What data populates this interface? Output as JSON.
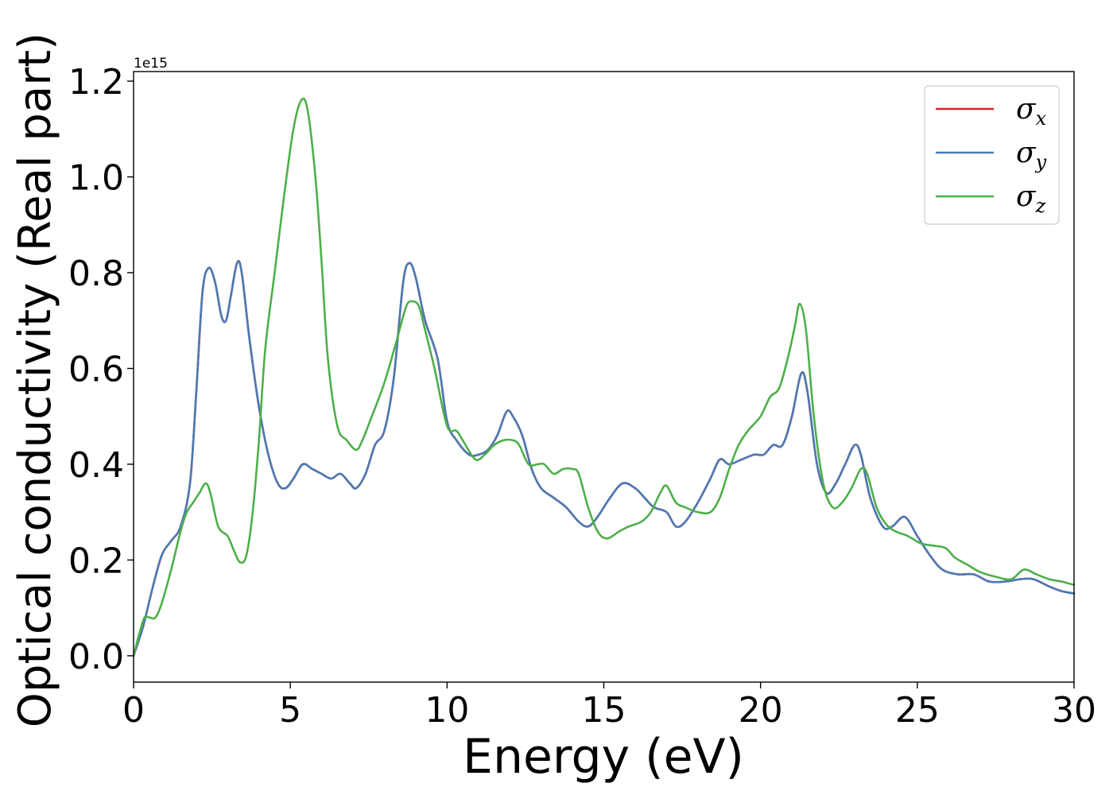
{
  "chart_data": {
    "type": "line",
    "xlabel": "Energy (eV)",
    "ylabel": "Optical conductivity (Real part)",
    "y_multiplier": "1e15",
    "xlim": [
      0,
      30
    ],
    "ylim": [
      -0.055,
      1.22
    ],
    "xticks": [
      0,
      5,
      10,
      15,
      20,
      25,
      30
    ],
    "xtick_labels": [
      "0",
      "5",
      "10",
      "15",
      "20",
      "25",
      "30"
    ],
    "yticks": [
      0.0,
      0.2,
      0.4,
      0.6,
      0.8,
      1.0,
      1.2
    ],
    "ytick_labels": [
      "0.0",
      "0.2",
      "0.4",
      "0.6",
      "0.8",
      "1.0",
      "1.2"
    ],
    "grid": false,
    "legend_position": "top-right",
    "series": [
      {
        "name": "σx",
        "symbol": "σ",
        "subscript": "x",
        "color": "#d62728",
        "points": [
          [
            0,
            0.0
          ],
          [
            0.3,
            0.06
          ],
          [
            0.6,
            0.14
          ],
          [
            0.9,
            0.21
          ],
          [
            1.2,
            0.24
          ],
          [
            1.5,
            0.27
          ],
          [
            1.8,
            0.36
          ],
          [
            2.0,
            0.55
          ],
          [
            2.2,
            0.76
          ],
          [
            2.4,
            0.81
          ],
          [
            2.6,
            0.78
          ],
          [
            2.8,
            0.71
          ],
          [
            2.95,
            0.7
          ],
          [
            3.1,
            0.75
          ],
          [
            3.3,
            0.82
          ],
          [
            3.45,
            0.8
          ],
          [
            3.7,
            0.66
          ],
          [
            4.0,
            0.52
          ],
          [
            4.3,
            0.42
          ],
          [
            4.6,
            0.36
          ],
          [
            4.85,
            0.35
          ],
          [
            5.1,
            0.37
          ],
          [
            5.4,
            0.4
          ],
          [
            5.7,
            0.39
          ],
          [
            6.0,
            0.38
          ],
          [
            6.3,
            0.37
          ],
          [
            6.6,
            0.38
          ],
          [
            6.9,
            0.36
          ],
          [
            7.1,
            0.35
          ],
          [
            7.4,
            0.38
          ],
          [
            7.7,
            0.44
          ],
          [
            8.0,
            0.47
          ],
          [
            8.3,
            0.58
          ],
          [
            8.6,
            0.78
          ],
          [
            8.8,
            0.82
          ],
          [
            9.0,
            0.79
          ],
          [
            9.3,
            0.7
          ],
          [
            9.7,
            0.62
          ],
          [
            10.0,
            0.49
          ],
          [
            10.3,
            0.45
          ],
          [
            10.7,
            0.42
          ],
          [
            11.0,
            0.42
          ],
          [
            11.3,
            0.43
          ],
          [
            11.6,
            0.46
          ],
          [
            11.9,
            0.51
          ],
          [
            12.1,
            0.5
          ],
          [
            12.4,
            0.46
          ],
          [
            12.7,
            0.39
          ],
          [
            13.0,
            0.35
          ],
          [
            13.4,
            0.33
          ],
          [
            13.8,
            0.31
          ],
          [
            14.2,
            0.28
          ],
          [
            14.5,
            0.27
          ],
          [
            14.8,
            0.29
          ],
          [
            15.2,
            0.33
          ],
          [
            15.6,
            0.36
          ],
          [
            16.0,
            0.35
          ],
          [
            16.3,
            0.33
          ],
          [
            16.6,
            0.31
          ],
          [
            17.0,
            0.3
          ],
          [
            17.3,
            0.27
          ],
          [
            17.6,
            0.28
          ],
          [
            18.0,
            0.32
          ],
          [
            18.4,
            0.37
          ],
          [
            18.7,
            0.41
          ],
          [
            19.0,
            0.4
          ],
          [
            19.4,
            0.41
          ],
          [
            19.8,
            0.42
          ],
          [
            20.1,
            0.42
          ],
          [
            20.4,
            0.44
          ],
          [
            20.7,
            0.44
          ],
          [
            21.0,
            0.5
          ],
          [
            21.3,
            0.59
          ],
          [
            21.5,
            0.55
          ],
          [
            21.8,
            0.4
          ],
          [
            22.1,
            0.34
          ],
          [
            22.4,
            0.36
          ],
          [
            22.7,
            0.4
          ],
          [
            23.0,
            0.44
          ],
          [
            23.2,
            0.42
          ],
          [
            23.5,
            0.33
          ],
          [
            23.9,
            0.27
          ],
          [
            24.2,
            0.27
          ],
          [
            24.6,
            0.29
          ],
          [
            25.0,
            0.25
          ],
          [
            25.4,
            0.21
          ],
          [
            25.8,
            0.18
          ],
          [
            26.3,
            0.17
          ],
          [
            26.8,
            0.17
          ],
          [
            27.3,
            0.155
          ],
          [
            27.8,
            0.155
          ],
          [
            28.3,
            0.16
          ],
          [
            28.7,
            0.16
          ],
          [
            29.2,
            0.145
          ],
          [
            29.6,
            0.135
          ],
          [
            30.0,
            0.13
          ]
        ]
      },
      {
        "name": "σy",
        "symbol": "σ",
        "subscript": "y",
        "color": "#4a7ab5",
        "points": [
          [
            0,
            0.0
          ],
          [
            0.3,
            0.06
          ],
          [
            0.6,
            0.14
          ],
          [
            0.9,
            0.21
          ],
          [
            1.2,
            0.24
          ],
          [
            1.5,
            0.27
          ],
          [
            1.8,
            0.36
          ],
          [
            2.0,
            0.55
          ],
          [
            2.2,
            0.76
          ],
          [
            2.4,
            0.81
          ],
          [
            2.6,
            0.78
          ],
          [
            2.8,
            0.71
          ],
          [
            2.95,
            0.7
          ],
          [
            3.1,
            0.75
          ],
          [
            3.3,
            0.82
          ],
          [
            3.45,
            0.8
          ],
          [
            3.7,
            0.66
          ],
          [
            4.0,
            0.52
          ],
          [
            4.3,
            0.42
          ],
          [
            4.6,
            0.36
          ],
          [
            4.85,
            0.35
          ],
          [
            5.1,
            0.37
          ],
          [
            5.4,
            0.4
          ],
          [
            5.7,
            0.39
          ],
          [
            6.0,
            0.38
          ],
          [
            6.3,
            0.37
          ],
          [
            6.6,
            0.38
          ],
          [
            6.9,
            0.36
          ],
          [
            7.1,
            0.35
          ],
          [
            7.4,
            0.38
          ],
          [
            7.7,
            0.44
          ],
          [
            8.0,
            0.47
          ],
          [
            8.3,
            0.58
          ],
          [
            8.6,
            0.78
          ],
          [
            8.8,
            0.82
          ],
          [
            9.0,
            0.79
          ],
          [
            9.3,
            0.7
          ],
          [
            9.7,
            0.62
          ],
          [
            10.0,
            0.49
          ],
          [
            10.3,
            0.45
          ],
          [
            10.7,
            0.42
          ],
          [
            11.0,
            0.42
          ],
          [
            11.3,
            0.43
          ],
          [
            11.6,
            0.46
          ],
          [
            11.9,
            0.51
          ],
          [
            12.1,
            0.5
          ],
          [
            12.4,
            0.46
          ],
          [
            12.7,
            0.39
          ],
          [
            13.0,
            0.35
          ],
          [
            13.4,
            0.33
          ],
          [
            13.8,
            0.31
          ],
          [
            14.2,
            0.28
          ],
          [
            14.5,
            0.27
          ],
          [
            14.8,
            0.29
          ],
          [
            15.2,
            0.33
          ],
          [
            15.6,
            0.36
          ],
          [
            16.0,
            0.35
          ],
          [
            16.3,
            0.33
          ],
          [
            16.6,
            0.31
          ],
          [
            17.0,
            0.3
          ],
          [
            17.3,
            0.27
          ],
          [
            17.6,
            0.28
          ],
          [
            18.0,
            0.32
          ],
          [
            18.4,
            0.37
          ],
          [
            18.7,
            0.41
          ],
          [
            19.0,
            0.4
          ],
          [
            19.4,
            0.41
          ],
          [
            19.8,
            0.42
          ],
          [
            20.1,
            0.42
          ],
          [
            20.4,
            0.44
          ],
          [
            20.7,
            0.44
          ],
          [
            21.0,
            0.5
          ],
          [
            21.3,
            0.59
          ],
          [
            21.5,
            0.55
          ],
          [
            21.8,
            0.4
          ],
          [
            22.1,
            0.34
          ],
          [
            22.4,
            0.36
          ],
          [
            22.7,
            0.4
          ],
          [
            23.0,
            0.44
          ],
          [
            23.2,
            0.42
          ],
          [
            23.5,
            0.33
          ],
          [
            23.9,
            0.27
          ],
          [
            24.2,
            0.27
          ],
          [
            24.6,
            0.29
          ],
          [
            25.0,
            0.25
          ],
          [
            25.4,
            0.21
          ],
          [
            25.8,
            0.18
          ],
          [
            26.3,
            0.17
          ],
          [
            26.8,
            0.17
          ],
          [
            27.3,
            0.155
          ],
          [
            27.8,
            0.155
          ],
          [
            28.3,
            0.16
          ],
          [
            28.7,
            0.16
          ],
          [
            29.2,
            0.145
          ],
          [
            29.6,
            0.135
          ],
          [
            30.0,
            0.13
          ]
        ]
      },
      {
        "name": "σz",
        "symbol": "σ",
        "subscript": "z",
        "color": "#4daf4a",
        "points": [
          [
            0,
            0.0
          ],
          [
            0.2,
            0.05
          ],
          [
            0.35,
            0.08
          ],
          [
            0.5,
            0.08
          ],
          [
            0.7,
            0.08
          ],
          [
            0.9,
            0.11
          ],
          [
            1.2,
            0.18
          ],
          [
            1.5,
            0.26
          ],
          [
            1.7,
            0.3
          ],
          [
            1.9,
            0.32
          ],
          [
            2.1,
            0.34
          ],
          [
            2.3,
            0.36
          ],
          [
            2.45,
            0.34
          ],
          [
            2.7,
            0.27
          ],
          [
            3.0,
            0.25
          ],
          [
            3.2,
            0.22
          ],
          [
            3.4,
            0.195
          ],
          [
            3.6,
            0.21
          ],
          [
            3.8,
            0.3
          ],
          [
            4.0,
            0.45
          ],
          [
            4.2,
            0.64
          ],
          [
            4.5,
            0.8
          ],
          [
            4.8,
            0.96
          ],
          [
            5.1,
            1.1
          ],
          [
            5.35,
            1.16
          ],
          [
            5.55,
            1.14
          ],
          [
            5.8,
            1.0
          ],
          [
            6.0,
            0.82
          ],
          [
            6.2,
            0.62
          ],
          [
            6.5,
            0.48
          ],
          [
            6.8,
            0.45
          ],
          [
            7.1,
            0.43
          ],
          [
            7.3,
            0.45
          ],
          [
            7.6,
            0.5
          ],
          [
            8.0,
            0.57
          ],
          [
            8.4,
            0.66
          ],
          [
            8.7,
            0.73
          ],
          [
            8.9,
            0.74
          ],
          [
            9.1,
            0.73
          ],
          [
            9.3,
            0.68
          ],
          [
            9.6,
            0.6
          ],
          [
            10.0,
            0.48
          ],
          [
            10.3,
            0.47
          ],
          [
            10.5,
            0.45
          ],
          [
            10.9,
            0.41
          ],
          [
            11.2,
            0.42
          ],
          [
            11.5,
            0.44
          ],
          [
            11.8,
            0.45
          ],
          [
            12.1,
            0.45
          ],
          [
            12.3,
            0.44
          ],
          [
            12.6,
            0.4
          ],
          [
            12.9,
            0.4
          ],
          [
            13.1,
            0.4
          ],
          [
            13.4,
            0.38
          ],
          [
            13.7,
            0.39
          ],
          [
            14.0,
            0.39
          ],
          [
            14.2,
            0.38
          ],
          [
            14.5,
            0.31
          ],
          [
            14.8,
            0.26
          ],
          [
            15.1,
            0.245
          ],
          [
            15.5,
            0.26
          ],
          [
            15.8,
            0.27
          ],
          [
            16.2,
            0.28
          ],
          [
            16.5,
            0.3
          ],
          [
            16.8,
            0.34
          ],
          [
            17.0,
            0.355
          ],
          [
            17.3,
            0.32
          ],
          [
            17.6,
            0.31
          ],
          [
            18.0,
            0.3
          ],
          [
            18.4,
            0.3
          ],
          [
            18.7,
            0.33
          ],
          [
            19.0,
            0.39
          ],
          [
            19.3,
            0.44
          ],
          [
            19.6,
            0.47
          ],
          [
            20.0,
            0.5
          ],
          [
            20.3,
            0.54
          ],
          [
            20.6,
            0.56
          ],
          [
            20.9,
            0.63
          ],
          [
            21.1,
            0.69
          ],
          [
            21.25,
            0.735
          ],
          [
            21.45,
            0.68
          ],
          [
            21.7,
            0.5
          ],
          [
            22.0,
            0.36
          ],
          [
            22.3,
            0.31
          ],
          [
            22.6,
            0.32
          ],
          [
            22.9,
            0.35
          ],
          [
            23.2,
            0.39
          ],
          [
            23.4,
            0.38
          ],
          [
            23.7,
            0.31
          ],
          [
            24.0,
            0.275
          ],
          [
            24.3,
            0.26
          ],
          [
            24.7,
            0.25
          ],
          [
            25.1,
            0.235
          ],
          [
            25.5,
            0.23
          ],
          [
            25.9,
            0.225
          ],
          [
            26.2,
            0.205
          ],
          [
            26.6,
            0.19
          ],
          [
            27.0,
            0.175
          ],
          [
            27.5,
            0.165
          ],
          [
            28.0,
            0.16
          ],
          [
            28.4,
            0.18
          ],
          [
            28.8,
            0.17
          ],
          [
            29.2,
            0.16
          ],
          [
            29.6,
            0.155
          ],
          [
            30.0,
            0.148
          ]
        ]
      }
    ]
  }
}
